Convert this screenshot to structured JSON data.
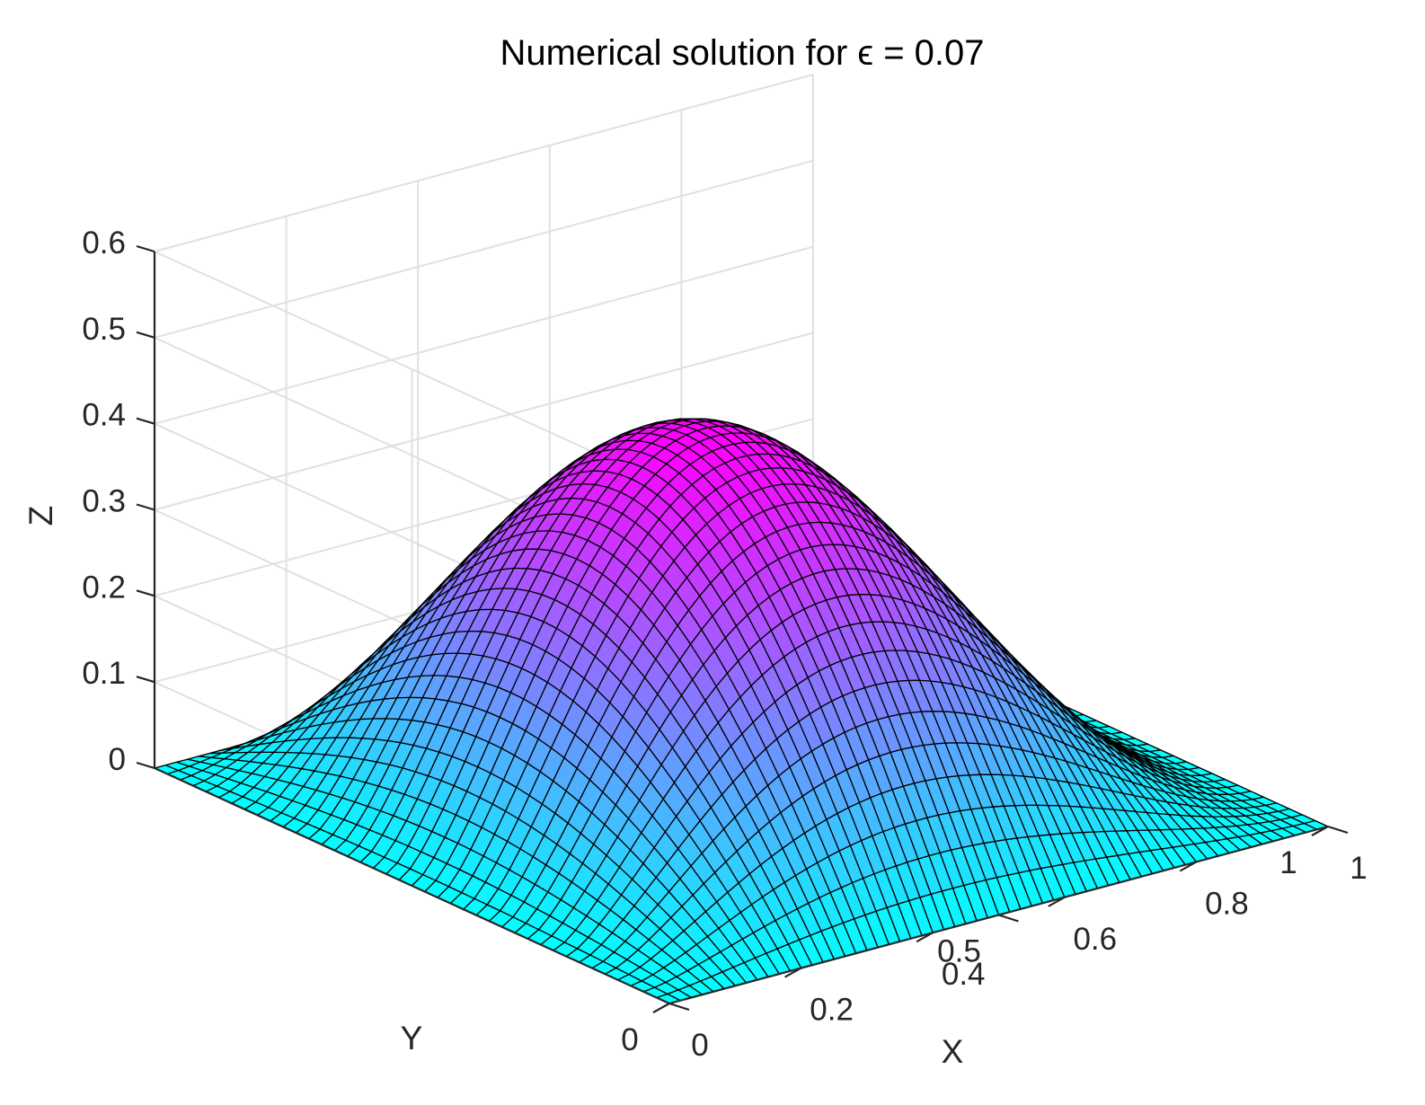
{
  "chart_data": {
    "type": "surface",
    "title": "Numerical solution for ϵ = 0.07",
    "xlabel": "X",
    "ylabel": "Y",
    "zlabel": "Z",
    "xlim": [
      0,
      1
    ],
    "ylim": [
      0,
      1
    ],
    "zlim": [
      0,
      0.6
    ],
    "x_ticks": [
      "0",
      "0.2",
      "0.4",
      "0.6",
      "0.8",
      "1"
    ],
    "y_ticks": [
      "0",
      "0.5",
      "1"
    ],
    "z_ticks": [
      "0",
      "0.1",
      "0.2",
      "0.3",
      "0.4",
      "0.5",
      "0.6"
    ],
    "z_peak": 0.44,
    "colormap": "cool",
    "colors": {
      "low": "#00ffff",
      "high": "#ff00ff",
      "edges": "#000000",
      "grid": "#e0e0e0",
      "axes": "#262626"
    },
    "grid": true
  }
}
